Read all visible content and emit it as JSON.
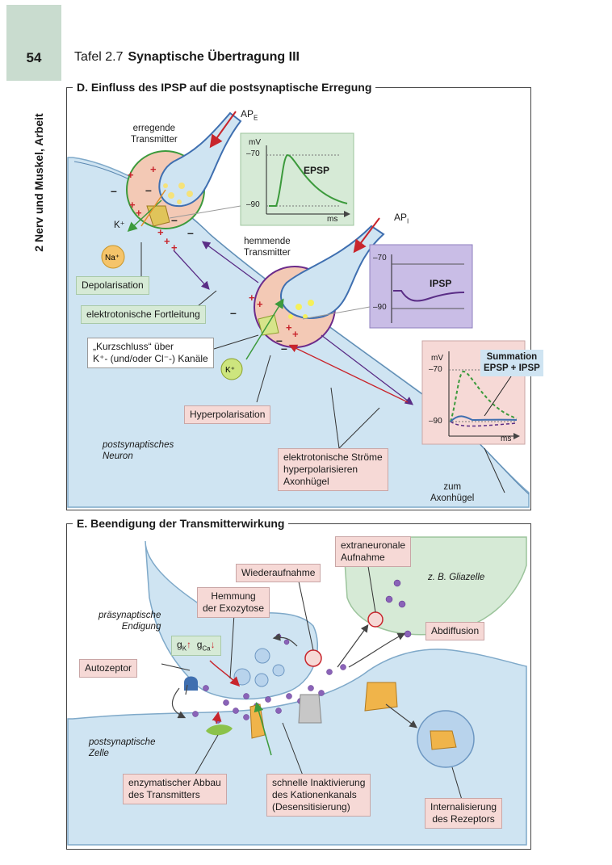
{
  "page": {
    "number": "54",
    "plate": "Tafel 2.7",
    "title": "Synaptische Übertragung III",
    "side_tab": "2 Nerv und Muskel, Arbeit"
  },
  "sectionD": {
    "title": "D. Einfluss des IPSP auf die postsynaptische Erregung",
    "ap_e": "AP",
    "ap_e_sub": "E",
    "ap_i": "AP",
    "ap_i_sub": "I",
    "exc_transmitter": [
      "erregende",
      "Transmitter"
    ],
    "inh_transmitter": [
      "hemmende",
      "Transmitter"
    ],
    "k_plus": "K⁺",
    "na_plus": "Na⁺",
    "k_ball": "K⁺",
    "depolarisation": "Depolarisation",
    "fortleitung": "elektrotonische Fortleitung",
    "kurzschluss": [
      "„Kurzschluss“ über",
      "K⁺- (und/oder Cl⁻-) Kanäle"
    ],
    "hyperpolarisation": "Hyperpolarisation",
    "postsyn_neuron": [
      "postsynaptisches",
      "Neuron"
    ],
    "stroeme": [
      "elektrotonische Ströme",
      "hyperpolarisieren",
      "Axonhügel"
    ],
    "axonhuegel": [
      "zum",
      "Axonhügel"
    ],
    "epsp_graph": {
      "unit_y": "mV",
      "top": "–70",
      "bottom": "–90",
      "unit_x": "ms",
      "label": "EPSP"
    },
    "ipsp_graph": {
      "top": "–70",
      "bottom": "–90",
      "label": "IPSP"
    },
    "sum_graph": {
      "unit_y": "mV",
      "top": "–70",
      "bottom": "–90",
      "unit_x": "ms",
      "label": [
        "Summation",
        "EPSP + IPSP"
      ]
    }
  },
  "sectionE": {
    "title": "E. Beendigung der Transmitterwirkung",
    "praesyn": [
      "präsynaptische",
      "Endigung"
    ],
    "postsyn": [
      "postsynaptische",
      "Zelle"
    ],
    "gliazelle": "z. B. Gliazelle",
    "wiederaufnahme": "Wiederaufnahme",
    "extraneuronal": [
      "extraneuronale",
      "Aufnahme"
    ],
    "hemmung": [
      "Hemmung",
      "der Exozytose"
    ],
    "gk": "g",
    "gk_sub": "K",
    "gca": "g",
    "gca_sub": "Ca",
    "autozeptor": "Autozeptor",
    "abdiffusion": "Abdiffusion",
    "enzym": [
      "enzymatischer Abbau",
      "des Transmitters"
    ],
    "inaktivierung": [
      "schnelle Inaktivierung",
      "des Kationenkanals",
      "(Desensitisierung)"
    ],
    "internalisierung": [
      "Internalisierung",
      "des Rezeptors"
    ]
  },
  "colors": {
    "pink_box": "#f6d9d6",
    "green_box": "#d6ead6",
    "purple_graph": "#c9bde6",
    "neuron_blue": "#cfe4f2",
    "transmitter_purple": "#8a63b8"
  }
}
